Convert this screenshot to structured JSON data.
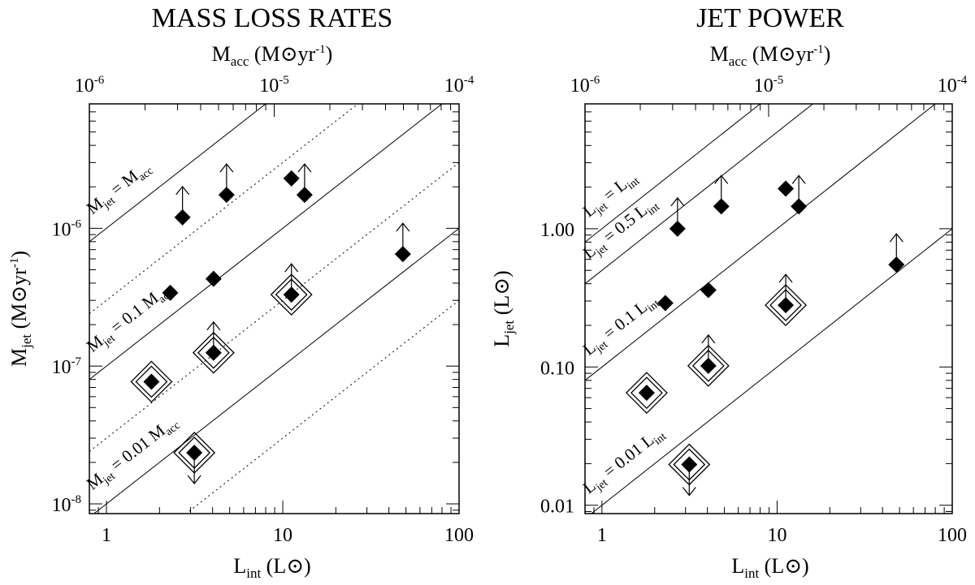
{
  "chart_data": [
    {
      "id": "mass",
      "type": "scatter",
      "title": "MASS LOSS RATES",
      "x_axis": {
        "label": "L",
        "label_sub": "int",
        "unit": "(L⊙)",
        "scale": "log",
        "range": [
          0.8,
          100
        ],
        "ticks": [
          "1",
          "10",
          "100"
        ],
        "tick_values": [
          1,
          10,
          100
        ]
      },
      "top_axis": {
        "label": "M",
        "label_sub": "acc",
        "unit": "(M⊙yr",
        "unit_sup": "-1",
        "unit_close": ")",
        "scale": "log",
        "range": [
          1e-06,
          0.0001
        ],
        "ticks": [
          [
            "10",
            "-6"
          ],
          [
            "10",
            "-5"
          ],
          [
            "10",
            "-4"
          ]
        ],
        "tick_values": [
          1e-06,
          1e-05,
          0.0001
        ]
      },
      "y_axis": {
        "label": "M",
        "label_sub": "jet",
        "unit": "(M⊙yr",
        "unit_sup": "-1",
        "unit_close": ")",
        "scale": "log",
        "range": [
          8.5e-09,
          8e-06
        ],
        "ticks": [
          [
            "10",
            "-8"
          ],
          [
            "10",
            "-7"
          ],
          [
            "10",
            "-6"
          ]
        ],
        "tick_values": [
          1e-08,
          1e-07,
          1e-06
        ]
      },
      "lines": [
        {
          "y_at_1": 1e-06,
          "style": "solid"
        },
        {
          "y_at_1": 3e-07,
          "style": "dotted"
        },
        {
          "y_at_1": 1e-07,
          "style": "solid"
        },
        {
          "y_at_1": 3e-08,
          "style": "dotted"
        },
        {
          "y_at_1": 1e-08,
          "style": "solid"
        },
        {
          "y_at_1": 3e-09,
          "style": "dotted"
        }
      ],
      "labels": [
        {
          "lhs": "M",
          "lhs_sub": "jet",
          "rhs": " = M",
          "rhs_sub": "acc",
          "x": 0.83,
          "y": 1.25e-06
        },
        {
          "lhs": "M",
          "lhs_sub": "jet",
          "rhs": " = 0.1 M",
          "rhs_sub": "acc",
          "x": 0.83,
          "y": 1.25e-07
        },
        {
          "lhs": "M",
          "lhs_sub": "jet",
          "rhs": " = 0.01 M",
          "rhs_sub": "acc",
          "x": 0.83,
          "y": 1.25e-08
        }
      ],
      "points": [
        {
          "x": 2.7,
          "y": 1.2e-06,
          "limit": "lower",
          "boxed": false
        },
        {
          "x": 4.8,
          "y": 1.75e-06,
          "limit": "lower",
          "boxed": false
        },
        {
          "x": 11.2,
          "y": 2.3e-06,
          "limit": "none",
          "boxed": false
        },
        {
          "x": 13.3,
          "y": 1.75e-06,
          "limit": "lower",
          "boxed": false
        },
        {
          "x": 48,
          "y": 6.5e-07,
          "limit": "lower",
          "boxed": false
        },
        {
          "x": 2.3,
          "y": 3.4e-07,
          "limit": "none",
          "boxed": false
        },
        {
          "x": 4.05,
          "y": 4.3e-07,
          "limit": "none",
          "boxed": false
        },
        {
          "x": 11.2,
          "y": 3.3e-07,
          "limit": "lower",
          "boxed": true
        },
        {
          "x": 4.05,
          "y": 1.25e-07,
          "limit": "lower",
          "boxed": true
        },
        {
          "x": 1.8,
          "y": 7.7e-08,
          "limit": "none",
          "boxed": true
        },
        {
          "x": 3.15,
          "y": 2.35e-08,
          "limit": "upper",
          "boxed": true
        }
      ]
    },
    {
      "id": "jet",
      "type": "scatter",
      "title": "JET POWER",
      "x_axis": {
        "label": "L",
        "label_sub": "int",
        "unit": "(L⊙)",
        "scale": "log",
        "range": [
          0.8,
          100
        ],
        "ticks": [
          "1",
          "10",
          "100"
        ],
        "tick_values": [
          1,
          10,
          100
        ]
      },
      "top_axis": {
        "label": "M",
        "label_sub": "acc",
        "unit": "(M⊙yr",
        "unit_sup": "-1",
        "unit_close": ")",
        "scale": "log",
        "range": [
          1e-06,
          0.0001
        ],
        "ticks": [
          [
            "10",
            "-6"
          ],
          [
            "10",
            "-5"
          ],
          [
            "10",
            "-4"
          ]
        ],
        "tick_values": [
          1e-06,
          1e-05,
          0.0001
        ]
      },
      "y_axis": {
        "label": "L",
        "label_sub": "jet",
        "unit": "(L⊙)",
        "scale": "log",
        "range": [
          0.0087,
          8
        ],
        "ticks": [
          "0.01",
          "0.10",
          "1.00"
        ],
        "tick_values": [
          0.01,
          0.1,
          1
        ]
      },
      "lines": [
        {
          "y_at_1": 1,
          "style": "solid"
        },
        {
          "y_at_1": 0.5,
          "style": "solid"
        },
        {
          "y_at_1": 0.1,
          "style": "solid"
        },
        {
          "y_at_1": 0.01,
          "style": "solid"
        }
      ],
      "labels": [
        {
          "lhs": "L",
          "lhs_sub": "jet",
          "rhs": " = L",
          "rhs_sub": "int",
          "x": 0.84,
          "y": 1.2
        },
        {
          "lhs": "L",
          "lhs_sub": "jet",
          "rhs": " = 0.5 L",
          "rhs_sub": "int",
          "x": 0.84,
          "y": 0.6
        },
        {
          "lhs": "L",
          "lhs_sub": "jet",
          "rhs": " = 0.1 L",
          "rhs_sub": "int",
          "x": 0.84,
          "y": 0.12
        },
        {
          "lhs": "L",
          "lhs_sub": "jet",
          "rhs": " = 0.01 L",
          "rhs_sub": "int",
          "x": 0.84,
          "y": 0.012
        }
      ],
      "points": [
        {
          "x": 2.7,
          "y": 1.0,
          "limit": "lower",
          "boxed": false
        },
        {
          "x": 4.8,
          "y": 1.45,
          "limit": "lower",
          "boxed": false
        },
        {
          "x": 11.2,
          "y": 1.95,
          "limit": "none",
          "boxed": false
        },
        {
          "x": 13.3,
          "y": 1.45,
          "limit": "lower",
          "boxed": false
        },
        {
          "x": 48,
          "y": 0.55,
          "limit": "lower",
          "boxed": false
        },
        {
          "x": 2.3,
          "y": 0.29,
          "limit": "none",
          "boxed": false
        },
        {
          "x": 4.05,
          "y": 0.36,
          "limit": "none",
          "boxed": false
        },
        {
          "x": 11.2,
          "y": 0.28,
          "limit": "lower",
          "boxed": true
        },
        {
          "x": 4.05,
          "y": 0.102,
          "limit": "lower",
          "boxed": true
        },
        {
          "x": 1.8,
          "y": 0.065,
          "limit": "none",
          "boxed": true
        },
        {
          "x": 3.15,
          "y": 0.0197,
          "limit": "upper",
          "boxed": true
        }
      ]
    }
  ]
}
